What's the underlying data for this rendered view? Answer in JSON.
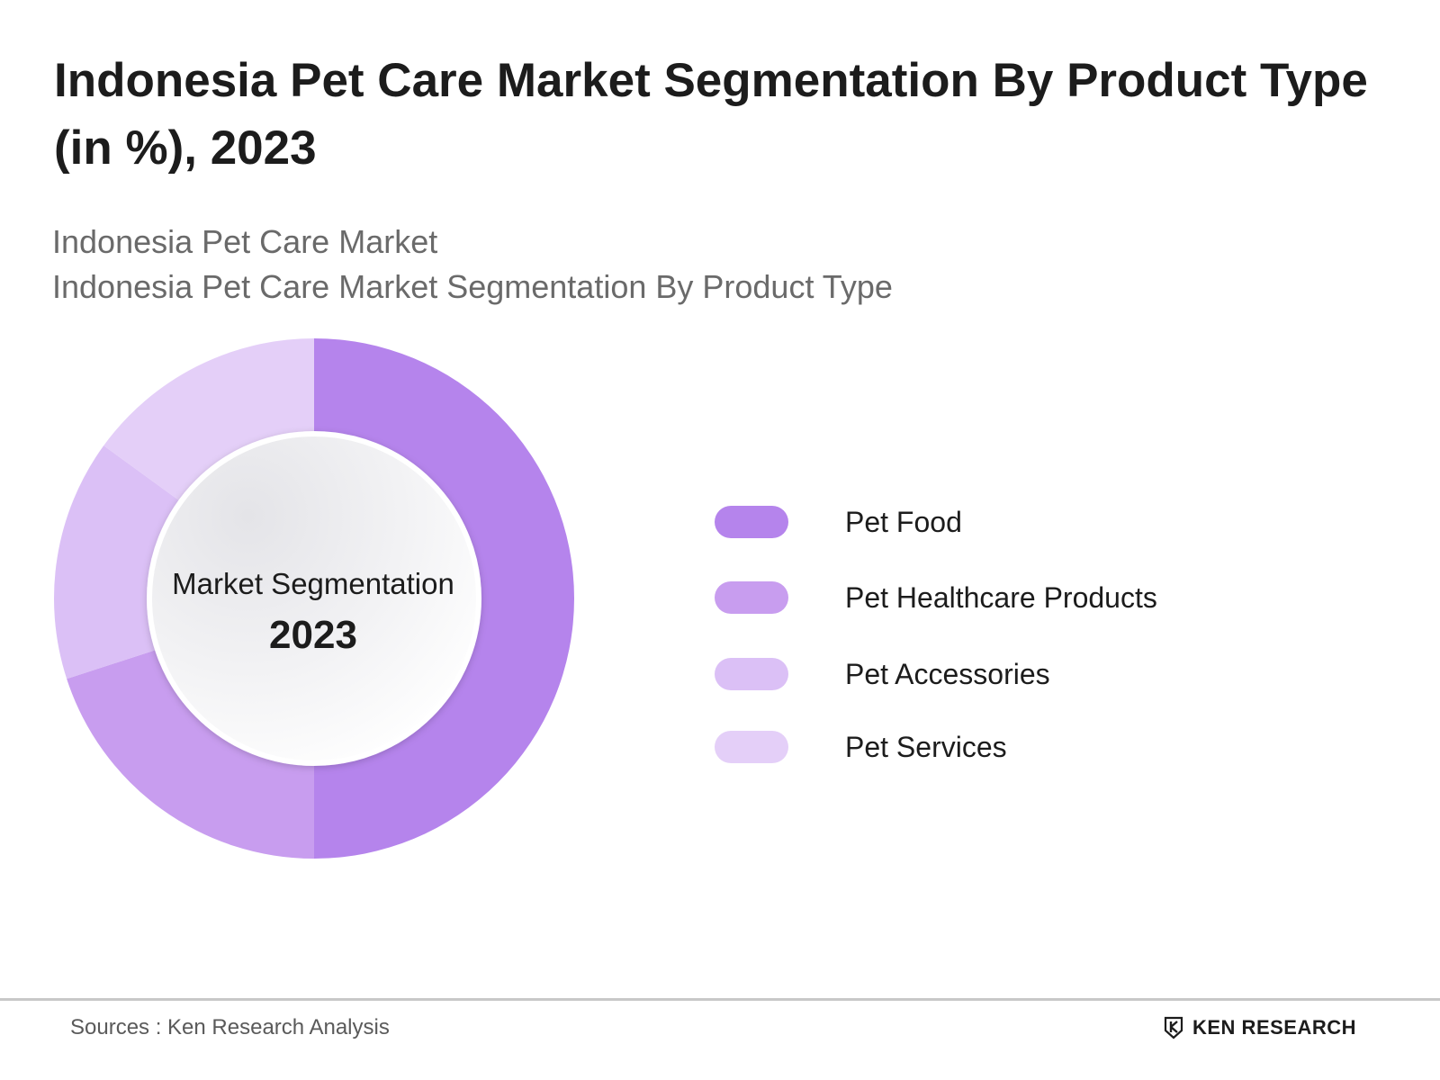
{
  "header": {
    "title": "Indonesia Pet Care Market Segmentation By Product Type (in %), 2023",
    "subtitle_lines": [
      "Indonesia Pet Care Market",
      "Indonesia Pet Care Market Segmentation By Product Type"
    ]
  },
  "chart_data": {
    "type": "pie",
    "title": "Indonesia Pet Care Market Segmentation By Product Type (in %), 2023",
    "center_text": [
      "Market Segmentation",
      "2023"
    ],
    "categories": [
      "Pet Food",
      "Pet Healthcare Products",
      "Pet Accessories",
      "Pet Services"
    ],
    "values": [
      50,
      20,
      15,
      15
    ],
    "colors": [
      "#b584ec",
      "#c89def",
      "#dbc0f6",
      "#e4cff8"
    ],
    "legend_position": "right",
    "data_labels": false
  },
  "footer": {
    "source": "Sources : Ken Research Analysis",
    "brand": "KEN RESEARCH",
    "brand_icon": "ken-research-logo-icon"
  }
}
